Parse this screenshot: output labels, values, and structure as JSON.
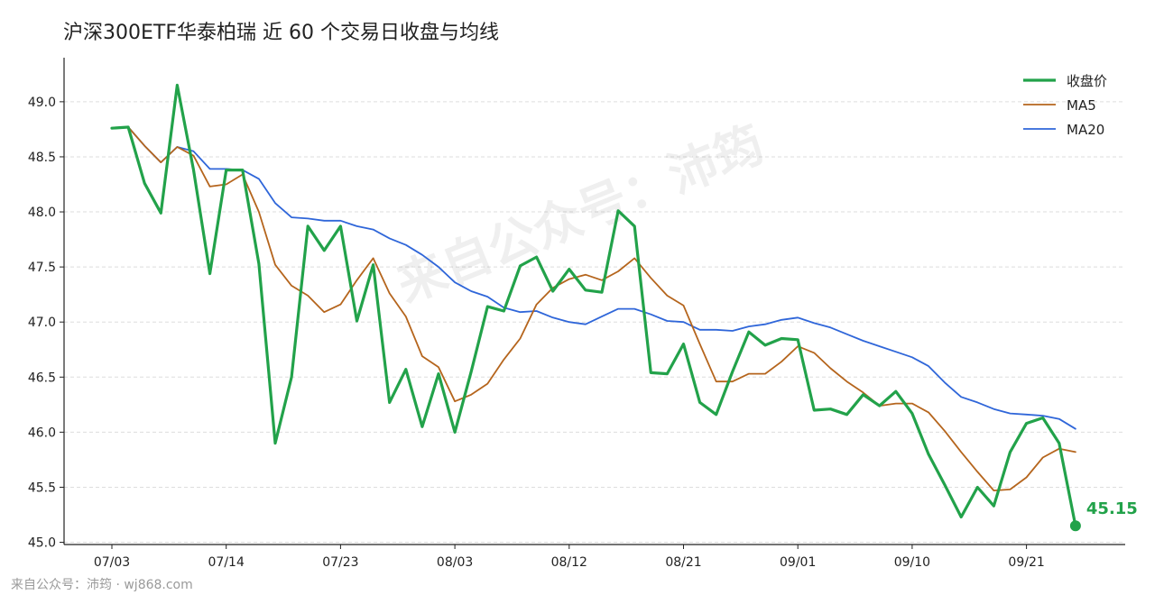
{
  "chart_data": {
    "type": "line",
    "title": "沪深300ETF华泰柏瑞 近 60 个交易日收盘与均线",
    "xlabel": "",
    "ylabel": "",
    "ylim": [
      44.98,
      49.4
    ],
    "yticks": [
      "45.0",
      "45.5",
      "46.0",
      "46.5",
      "47.0",
      "47.5",
      "48.0",
      "48.5",
      "49.0"
    ],
    "x_tick_labels": [
      "07/03",
      "07/14",
      "07/23",
      "08/03",
      "08/12",
      "08/21",
      "09/01",
      "09/10",
      "09/21"
    ],
    "x_tick_indices": [
      0,
      7,
      14,
      21,
      28,
      35,
      42,
      49,
      56
    ],
    "n_points": 60,
    "grid": "horizontal dashed",
    "legend_position": "top-right",
    "series": [
      {
        "name": "收盘价",
        "color": "#22a24a",
        "values": [
          48.76,
          48.77,
          48.26,
          47.99,
          49.15,
          48.38,
          47.44,
          48.38,
          48.38,
          47.53,
          45.9,
          46.5,
          47.87,
          47.65,
          47.87,
          47.01,
          47.52,
          46.27,
          46.57,
          46.05,
          46.53,
          46.0,
          46.55,
          47.14,
          47.1,
          47.51,
          47.59,
          47.28,
          47.48,
          47.29,
          47.27,
          48.01,
          47.87,
          46.54,
          46.53,
          46.8,
          46.27,
          46.16,
          46.55,
          46.91,
          46.79,
          46.85,
          46.84,
          46.2,
          46.21,
          46.16,
          46.34,
          46.24,
          46.37,
          46.17,
          45.8,
          45.52,
          45.23,
          45.5,
          45.33,
          45.82,
          46.08,
          46.13,
          45.9,
          45.15
        ]
      },
      {
        "name": "MA5",
        "color": "#b5651d",
        "values": [
          48.76,
          48.77,
          48.6,
          48.45,
          48.59,
          48.51,
          48.23,
          48.25,
          48.34,
          48.0,
          47.52,
          47.33,
          47.24,
          47.09,
          47.16,
          47.38,
          47.58,
          47.26,
          47.05,
          46.69,
          46.59,
          46.28,
          46.34,
          46.44,
          46.66,
          46.85,
          47.16,
          47.31,
          47.39,
          47.43,
          47.38,
          47.46,
          47.58,
          47.4,
          47.24,
          47.15,
          46.8,
          46.46,
          46.46,
          46.53,
          46.53,
          46.64,
          46.78,
          46.72,
          46.58,
          46.46,
          46.36,
          46.24,
          46.26,
          46.26,
          46.18,
          46.01,
          45.82,
          45.64,
          45.47,
          45.48,
          45.59,
          45.77,
          45.85,
          45.82
        ]
      },
      {
        "name": "MA20",
        "color": "#2f66d9",
        "values": [
          48.76,
          48.77,
          48.6,
          48.45,
          48.59,
          48.55,
          48.39,
          48.39,
          48.38,
          48.3,
          48.08,
          47.95,
          47.94,
          47.92,
          47.92,
          47.87,
          47.84,
          47.76,
          47.7,
          47.61,
          47.5,
          47.36,
          47.28,
          47.23,
          47.13,
          47.09,
          47.1,
          47.04,
          47.0,
          46.98,
          47.05,
          47.12,
          47.12,
          47.07,
          47.01,
          47.0,
          46.93,
          46.93,
          46.92,
          46.96,
          46.98,
          47.02,
          47.04,
          46.99,
          46.95,
          46.89,
          46.83,
          46.78,
          46.73,
          46.68,
          46.6,
          46.45,
          46.32,
          46.27,
          46.21,
          46.17,
          46.16,
          46.15,
          46.12,
          46.03
        ]
      }
    ],
    "last_value_label": "45.15",
    "watermark": "来自公众号：沛筠"
  },
  "footer": {
    "credit": "来自公众号：沛筠 · wj868.com"
  }
}
